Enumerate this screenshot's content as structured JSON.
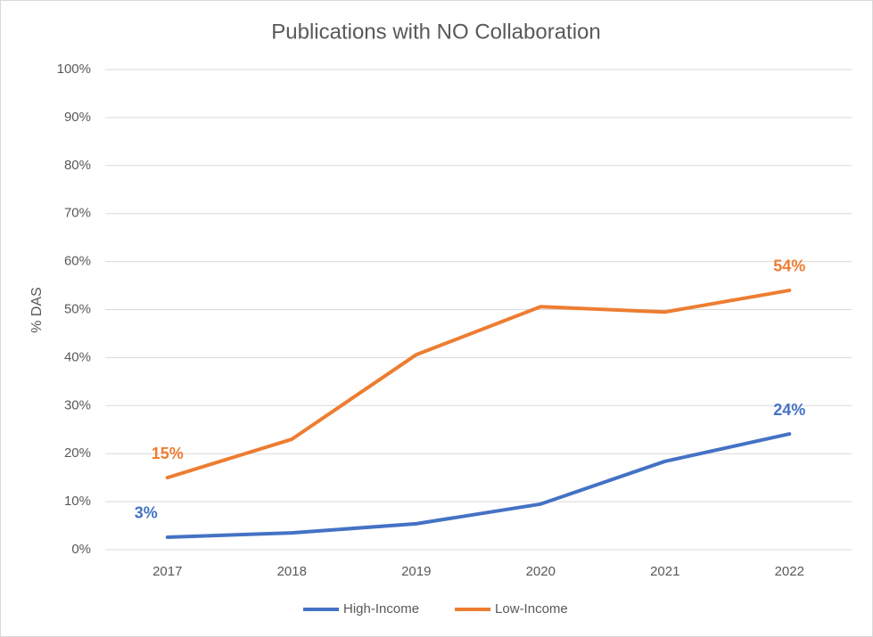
{
  "chart_data": {
    "type": "line",
    "title": "Publications with NO Collaboration",
    "y_label": "% DAS",
    "categories": [
      "2017",
      "2018",
      "2019",
      "2020",
      "2021",
      "2022"
    ],
    "series": [
      {
        "name": "High-Income",
        "color": "#4472c4",
        "values": [
          2.6,
          3.5,
          5.4,
          9.5,
          18.4,
          24.1
        ],
        "value_labels": [
          "3%",
          null,
          null,
          null,
          null,
          "24%"
        ]
      },
      {
        "name": "Low-Income",
        "color": "#ed7d31",
        "values": [
          15.0,
          23.0,
          40.6,
          50.6,
          49.5,
          54.0
        ],
        "value_labels": [
          "15%",
          null,
          null,
          null,
          null,
          "54%"
        ]
      }
    ],
    "ylim": [
      0,
      100
    ],
    "yticks": [
      {
        "value": 0,
        "label": "0%"
      },
      {
        "value": 10,
        "label": "10%"
      },
      {
        "value": 20,
        "label": "20%"
      },
      {
        "value": 30,
        "label": "30%"
      },
      {
        "value": 40,
        "label": "40%"
      },
      {
        "value": 50,
        "label": "50%"
      },
      {
        "value": 60,
        "label": "60%"
      },
      {
        "value": 70,
        "label": "70%"
      },
      {
        "value": 80,
        "label": "80%"
      },
      {
        "value": 90,
        "label": "90%"
      },
      {
        "value": 100,
        "label": "100%"
      }
    ],
    "grid": true,
    "legend": "bottom"
  }
}
